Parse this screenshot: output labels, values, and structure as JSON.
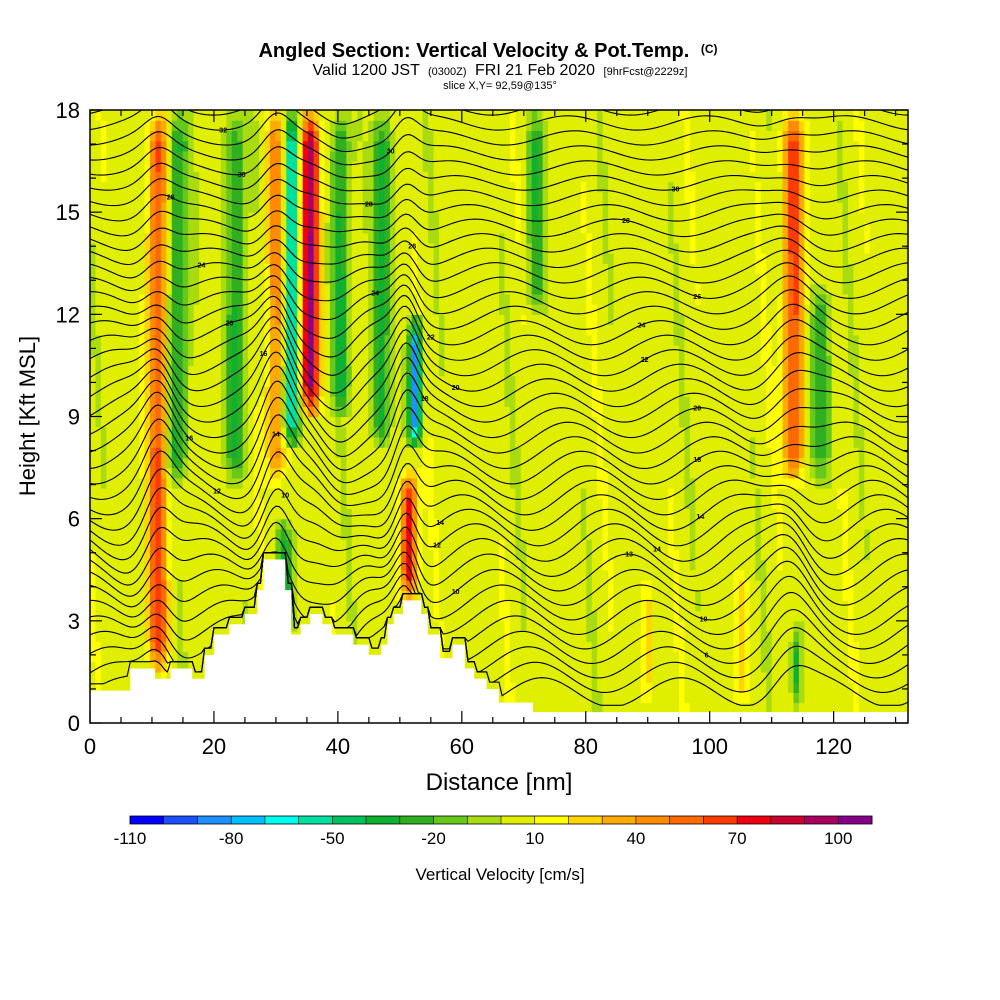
{
  "chart_data": {
    "type": "heatmap",
    "title": "Angled Section: Vertical Velocity & Pot.Temp.",
    "title_suffix": "(C)",
    "subtitle_parts": [
      "Valid 1200 JST",
      "(0300Z)",
      "FRI 21 Feb 2020",
      "[9hrFcst@2229z]"
    ],
    "slice_label": "slice X,Y= 92,59@135°",
    "xlabel": "Distance [nm]",
    "ylabel": "Height [Kft MSL]",
    "xlim": [
      0,
      132
    ],
    "ylim": [
      0,
      18
    ],
    "x_ticks": [
      0,
      20,
      40,
      60,
      80,
      100,
      120
    ],
    "y_ticks": [
      0,
      3,
      6,
      9,
      12,
      15,
      18
    ],
    "colorbar": {
      "label": "Vertical Velocity [cm/s]",
      "labeled_ticks": [
        -110,
        -80,
        -50,
        -20,
        10,
        40,
        70,
        100
      ],
      "levels": [
        -110,
        -100,
        -90,
        -80,
        -70,
        -60,
        -50,
        -40,
        -30,
        -20,
        -10,
        0,
        10,
        20,
        30,
        40,
        50,
        60,
        70,
        80,
        90,
        100,
        110
      ],
      "colors": [
        "#0000ff",
        "#1a50ff",
        "#1e90ff",
        "#00bfff",
        "#00ffee",
        "#00e0a0",
        "#00c060",
        "#10b030",
        "#30b020",
        "#66c81a",
        "#a8dc10",
        "#e0ee00",
        "#ffff00",
        "#ffd500",
        "#ffaa00",
        "#ff8c00",
        "#ff6a00",
        "#ff3c00",
        "#ee0010",
        "#cc0030",
        "#aa0060",
        "#880088",
        "#550099"
      ]
    },
    "background_level": 5,
    "updrafts": [
      {
        "x": 11,
        "w": 1.6,
        "amp": 58,
        "ymin": 1.5,
        "ymax": 18
      },
      {
        "x": 30,
        "w": 1.6,
        "amp": 42,
        "ymin": 7,
        "ymax": 18
      },
      {
        "x": 35.5,
        "w": 1.5,
        "amp": 95,
        "ymin": 9,
        "ymax": 18
      },
      {
        "x": 51.5,
        "w": 1.3,
        "amp": 75,
        "ymin": 3.5,
        "ymax": 7.5
      },
      {
        "x": 113.5,
        "w": 1.6,
        "amp": 60,
        "ymin": 7,
        "ymax": 18
      },
      {
        "x": 90,
        "w": 1.0,
        "amp": 18,
        "ymin": 0.5,
        "ymax": 4.5
      },
      {
        "x": 105,
        "w": 1.0,
        "amp": 22,
        "ymin": 0.5,
        "ymax": 4.5
      }
    ],
    "downdrafts": [
      {
        "x": 14,
        "w": 1.8,
        "amp": 38,
        "ymin": 7,
        "ymax": 18
      },
      {
        "x": 23.5,
        "w": 1.6,
        "amp": 36,
        "ymin": 7,
        "ymax": 18
      },
      {
        "x": 32.5,
        "w": 1.3,
        "amp": 75,
        "ymin": 8,
        "ymax": 18
      },
      {
        "x": 40.5,
        "w": 1.4,
        "amp": 42,
        "ymin": 9,
        "ymax": 18
      },
      {
        "x": 47,
        "w": 1.4,
        "amp": 40,
        "ymin": 8,
        "ymax": 18
      },
      {
        "x": 52.5,
        "w": 1.0,
        "amp": 95,
        "ymin": 8,
        "ymax": 12
      },
      {
        "x": 72,
        "w": 1.4,
        "amp": 34,
        "ymin": 12,
        "ymax": 18
      },
      {
        "x": 118,
        "w": 1.8,
        "amp": 30,
        "ymin": 7,
        "ymax": 13
      },
      {
        "x": 31.5,
        "w": 1.4,
        "amp": 40,
        "ymin": 2.5,
        "ymax": 6
      },
      {
        "x": 114,
        "w": 0.8,
        "amp": 40,
        "ymin": 0.3,
        "ymax": 3
      }
    ],
    "terrain": [
      [
        0,
        0.95
      ],
      [
        6.5,
        0.95
      ],
      [
        6.5,
        1.6
      ],
      [
        10.5,
        1.6
      ],
      [
        10.5,
        1.3
      ],
      [
        13,
        1.3
      ],
      [
        13,
        1.6
      ],
      [
        16.5,
        1.6
      ],
      [
        16.5,
        1.3
      ],
      [
        18.5,
        1.3
      ],
      [
        18.5,
        2.0
      ],
      [
        20,
        2.0
      ],
      [
        20,
        2.6
      ],
      [
        22.5,
        2.6
      ],
      [
        22.5,
        2.9
      ],
      [
        25,
        2.9
      ],
      [
        25,
        3.2
      ],
      [
        27,
        3.2
      ],
      [
        27,
        3.9
      ],
      [
        28,
        3.9
      ],
      [
        28,
        4.8
      ],
      [
        31.5,
        4.8
      ],
      [
        31.5,
        3.9
      ],
      [
        32.5,
        3.9
      ],
      [
        32.5,
        2.6
      ],
      [
        34,
        2.6
      ],
      [
        34,
        2.9
      ],
      [
        35.5,
        2.9
      ],
      [
        35.5,
        3.2
      ],
      [
        37.5,
        3.2
      ],
      [
        37.5,
        2.9
      ],
      [
        39,
        2.9
      ],
      [
        39,
        2.6
      ],
      [
        42.5,
        2.6
      ],
      [
        42.5,
        2.3
      ],
      [
        45,
        2.3
      ],
      [
        45,
        2.0
      ],
      [
        47,
        2.0
      ],
      [
        47,
        2.3
      ],
      [
        48,
        2.3
      ],
      [
        48,
        2.9
      ],
      [
        49,
        2.9
      ],
      [
        49,
        3.2
      ],
      [
        50.5,
        3.2
      ],
      [
        50.5,
        3.6
      ],
      [
        53.5,
        3.6
      ],
      [
        53.5,
        3.2
      ],
      [
        54.5,
        3.2
      ],
      [
        54.5,
        2.6
      ],
      [
        56.5,
        2.6
      ],
      [
        56.5,
        1.9
      ],
      [
        58.5,
        1.9
      ],
      [
        58.5,
        2.3
      ],
      [
        60.5,
        2.3
      ],
      [
        60.5,
        1.6
      ],
      [
        62,
        1.6
      ],
      [
        62,
        1.3
      ],
      [
        64,
        1.3
      ],
      [
        64,
        1.0
      ],
      [
        66,
        1.0
      ],
      [
        66,
        0.6
      ],
      [
        71.5,
        0.6
      ],
      [
        71.5,
        0.32
      ],
      [
        132,
        0.32
      ]
    ],
    "isentropes": {
      "count": 40,
      "labels": [
        {
          "line": 38,
          "x": 21.5,
          "text": "32"
        },
        {
          "line": 35,
          "x": 24.5,
          "text": "30"
        },
        {
          "line": 32,
          "x": 13.0,
          "text": "28"
        },
        {
          "line": 36,
          "x": 48.5,
          "text": "30"
        },
        {
          "line": 33,
          "x": 45.0,
          "text": "28"
        },
        {
          "line": 29,
          "x": 52.0,
          "text": "28"
        },
        {
          "line": 26,
          "x": 46.0,
          "text": "24"
        },
        {
          "line": 24,
          "x": 55.0,
          "text": "22"
        },
        {
          "line": 21,
          "x": 59.0,
          "text": "20"
        },
        {
          "line": 18,
          "x": 54.0,
          "text": "18"
        },
        {
          "line": 28,
          "x": 18.0,
          "text": "24"
        },
        {
          "line": 24,
          "x": 22.5,
          "text": "20"
        },
        {
          "line": 20,
          "x": 28.0,
          "text": "16"
        },
        {
          "line": 17,
          "x": 16.0,
          "text": "16"
        },
        {
          "line": 14,
          "x": 20.5,
          "text": "12"
        },
        {
          "line": 14,
          "x": 30.0,
          "text": "14"
        },
        {
          "line": 11,
          "x": 31.5,
          "text": "10"
        },
        {
          "line": 11,
          "x": 56.5,
          "text": "14"
        },
        {
          "line": 10,
          "x": 56.0,
          "text": "12"
        },
        {
          "line": 7,
          "x": 59.0,
          "text": "10"
        },
        {
          "line": 34,
          "x": 94.5,
          "text": "30"
        },
        {
          "line": 31,
          "x": 86.5,
          "text": "28"
        },
        {
          "line": 27,
          "x": 98.0,
          "text": "26"
        },
        {
          "line": 24,
          "x": 89.0,
          "text": "24"
        },
        {
          "line": 22,
          "x": 89.5,
          "text": "22"
        },
        {
          "line": 18,
          "x": 98.0,
          "text": "20"
        },
        {
          "line": 15,
          "x": 98.0,
          "text": "18"
        },
        {
          "line": 12,
          "x": 98.5,
          "text": "14"
        },
        {
          "line": 10,
          "x": 91.5,
          "text": "14"
        },
        {
          "line": 8,
          "x": 87.0,
          "text": "13"
        },
        {
          "line": 6,
          "x": 99.0,
          "text": "10"
        },
        {
          "line": 3,
          "x": 99.5,
          "text": "6"
        }
      ]
    }
  }
}
